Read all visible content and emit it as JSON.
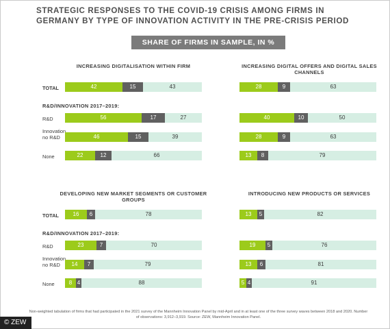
{
  "title": "STRATEGIC RESPONSES TO THE COVID-19 CRISIS AMONG FIRMS IN GERMANY BY TYPE OF INNOVATION ACTIVITY IN THE PRE-CRISIS PERIOD",
  "subtitle": "SHARE OF FIRMS IN SAMPLE, IN %",
  "row_labels": {
    "total": "TOTAL",
    "group": "R&D/INNOVATION 2017–2019:",
    "rd": "R&D",
    "innov": "Innovation, no R&D",
    "none": "None"
  },
  "colors": [
    "#9ccb1b",
    "#606060",
    "#d6eee3"
  ],
  "chart_data": [
    {
      "type": "bar",
      "stacked": true,
      "orientation": "horizontal",
      "title": "INCREASING DIGITALISATION WITHIN FIRM",
      "categories": [
        "TOTAL",
        "R&D",
        "Innovation, no R&D",
        "None"
      ],
      "series": [
        {
          "values": [
            42,
            56,
            46,
            22
          ]
        },
        {
          "values": [
            15,
            17,
            15,
            12
          ]
        },
        {
          "values": [
            43,
            27,
            39,
            66
          ]
        }
      ],
      "xlim": [
        0,
        100
      ]
    },
    {
      "type": "bar",
      "stacked": true,
      "orientation": "horizontal",
      "title": "INCREASING DIGITAL OFFERS AND DIGITAL SALES CHANNELS",
      "categories": [
        "TOTAL",
        "R&D",
        "Innovation, no R&D",
        "None"
      ],
      "series": [
        {
          "values": [
            28,
            40,
            28,
            13
          ]
        },
        {
          "values": [
            9,
            10,
            9,
            8
          ]
        },
        {
          "values": [
            63,
            50,
            63,
            79
          ]
        }
      ],
      "xlim": [
        0,
        100
      ]
    },
    {
      "type": "bar",
      "stacked": true,
      "orientation": "horizontal",
      "title": "DEVELOPING NEW MARKET SEGMENTS OR CUSTOMER GROUPS",
      "categories": [
        "TOTAL",
        "R&D",
        "Innovation, no R&D",
        "None"
      ],
      "series": [
        {
          "values": [
            16,
            23,
            14,
            8
          ]
        },
        {
          "values": [
            6,
            7,
            7,
            4
          ]
        },
        {
          "values": [
            78,
            70,
            79,
            88
          ]
        }
      ],
      "xlim": [
        0,
        100
      ]
    },
    {
      "type": "bar",
      "stacked": true,
      "orientation": "horizontal",
      "title": "INTRODUCING NEW PRODUCTS OR SERVICES",
      "categories": [
        "TOTAL",
        "R&D",
        "Innovation, no R&D",
        "None"
      ],
      "series": [
        {
          "values": [
            13,
            19,
            13,
            5
          ]
        },
        {
          "values": [
            5,
            5,
            6,
            4
          ]
        },
        {
          "values": [
            82,
            76,
            81,
            91
          ]
        }
      ],
      "xlim": [
        0,
        100
      ]
    }
  ],
  "footnote": "Non-weighted tabulation of firms that had participated in the 2021 survey of the Mannheim Innovation Panel by mid-April and in at least one of the three survey waves between 2018 and 2020. Number of observations: 3,912–3,919.",
  "source": "Source: ZEW, Mannheim Innovation Panel.",
  "copyright": "© ZEW"
}
